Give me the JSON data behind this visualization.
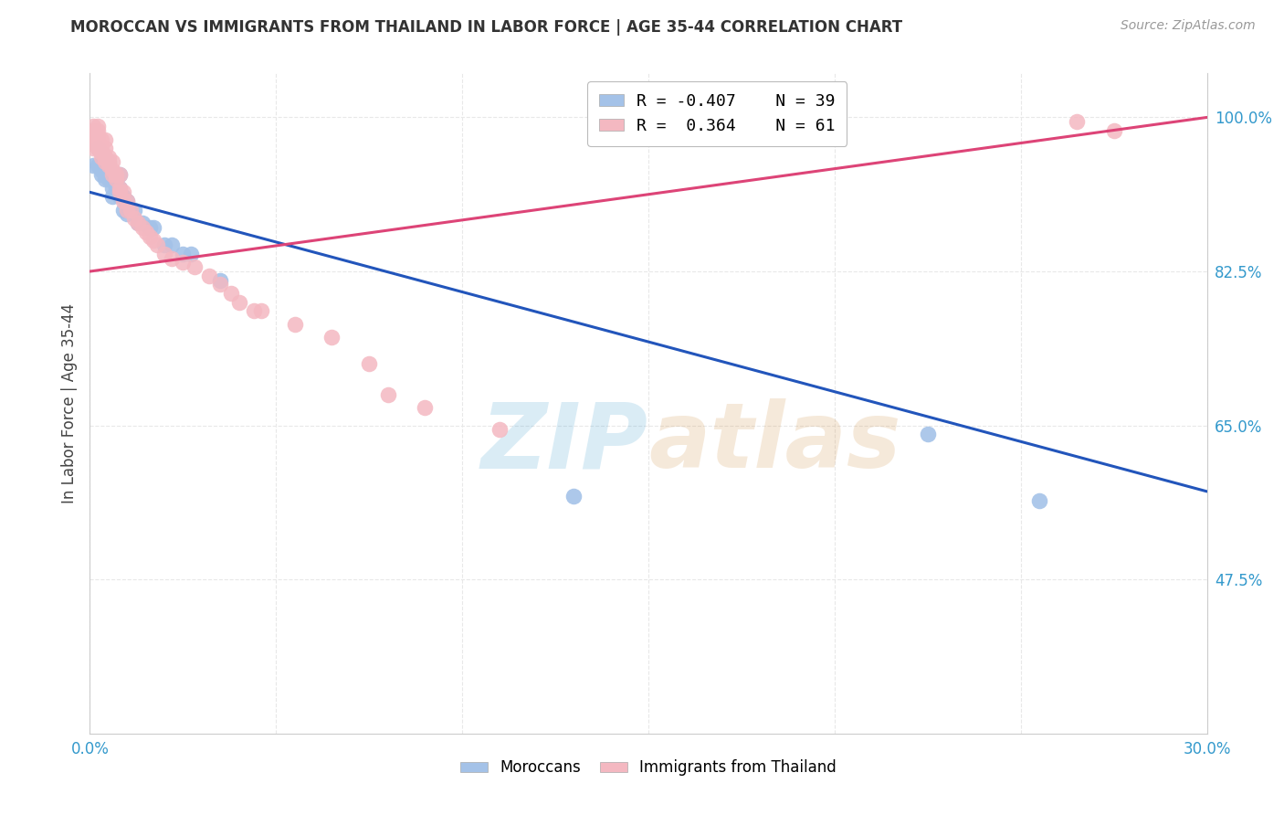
{
  "title": "MOROCCAN VS IMMIGRANTS FROM THAILAND IN LABOR FORCE | AGE 35-44 CORRELATION CHART",
  "source": "Source: ZipAtlas.com",
  "ylabel": "In Labor Force | Age 35-44",
  "xlim": [
    0.0,
    0.3
  ],
  "ylim": [
    0.3,
    1.05
  ],
  "blue_color": "#a4c2e8",
  "pink_color": "#f4b8c1",
  "blue_line_color": "#2255bb",
  "pink_line_color": "#dd4477",
  "legend_r_blue": "R = -0.407",
  "legend_n_blue": "N = 39",
  "legend_r_pink": "R =  0.364",
  "legend_n_pink": "N = 61",
  "watermark_zip": "ZIP",
  "watermark_atlas": "atlas",
  "watermark_color": "#c5ddf0",
  "blue_scatter_x": [
    0.001,
    0.002,
    0.002,
    0.003,
    0.003,
    0.003,
    0.004,
    0.004,
    0.004,
    0.005,
    0.005,
    0.005,
    0.006,
    0.006,
    0.006,
    0.006,
    0.007,
    0.007,
    0.008,
    0.008,
    0.008,
    0.009,
    0.009,
    0.01,
    0.01,
    0.011,
    0.012,
    0.013,
    0.014,
    0.016,
    0.017,
    0.02,
    0.022,
    0.025,
    0.027,
    0.035,
    0.13,
    0.225,
    0.255
  ],
  "blue_scatter_y": [
    0.945,
    0.945,
    0.965,
    0.935,
    0.94,
    0.96,
    0.93,
    0.935,
    0.945,
    0.93,
    0.94,
    0.95,
    0.91,
    0.92,
    0.93,
    0.935,
    0.92,
    0.93,
    0.91,
    0.92,
    0.935,
    0.895,
    0.91,
    0.89,
    0.905,
    0.895,
    0.895,
    0.88,
    0.88,
    0.875,
    0.875,
    0.855,
    0.855,
    0.845,
    0.845,
    0.815,
    0.57,
    0.64,
    0.565
  ],
  "pink_scatter_x": [
    0.001,
    0.001,
    0.001,
    0.001,
    0.001,
    0.001,
    0.002,
    0.002,
    0.002,
    0.002,
    0.002,
    0.002,
    0.003,
    0.003,
    0.003,
    0.003,
    0.004,
    0.004,
    0.004,
    0.004,
    0.005,
    0.005,
    0.005,
    0.006,
    0.006,
    0.006,
    0.007,
    0.007,
    0.008,
    0.008,
    0.008,
    0.009,
    0.009,
    0.01,
    0.01,
    0.011,
    0.012,
    0.013,
    0.014,
    0.015,
    0.016,
    0.017,
    0.018,
    0.02,
    0.022,
    0.025,
    0.028,
    0.032,
    0.035,
    0.038,
    0.04,
    0.044,
    0.046,
    0.055,
    0.065,
    0.075,
    0.08,
    0.09,
    0.11,
    0.265,
    0.275
  ],
  "pink_scatter_y": [
    0.965,
    0.97,
    0.975,
    0.98,
    0.985,
    0.99,
    0.965,
    0.97,
    0.975,
    0.98,
    0.985,
    0.99,
    0.955,
    0.96,
    0.965,
    0.975,
    0.95,
    0.955,
    0.965,
    0.975,
    0.945,
    0.95,
    0.955,
    0.935,
    0.94,
    0.95,
    0.93,
    0.935,
    0.915,
    0.92,
    0.935,
    0.905,
    0.915,
    0.895,
    0.905,
    0.895,
    0.885,
    0.88,
    0.875,
    0.87,
    0.865,
    0.86,
    0.855,
    0.845,
    0.84,
    0.835,
    0.83,
    0.82,
    0.81,
    0.8,
    0.79,
    0.78,
    0.78,
    0.765,
    0.75,
    0.72,
    0.685,
    0.67,
    0.645,
    0.995,
    0.985
  ],
  "blue_trend_y0": 0.915,
  "blue_trend_y1": 0.575,
  "pink_trend_y0": 0.825,
  "pink_trend_y1": 1.0,
  "ytick_vals": [
    0.475,
    0.65,
    0.825,
    1.0
  ],
  "ytick_labels": [
    "47.5%",
    "65.0%",
    "82.5%",
    "100.0%"
  ],
  "xtick_vals": [
    0.0,
    0.05,
    0.1,
    0.15,
    0.2,
    0.25,
    0.3
  ],
  "xtick_labels": [
    "0.0%",
    "",
    "",
    "",
    "",
    "",
    "30.0%"
  ],
  "tick_color": "#3399cc",
  "grid_color": "#e8e8e8",
  "spine_color": "#cccccc"
}
